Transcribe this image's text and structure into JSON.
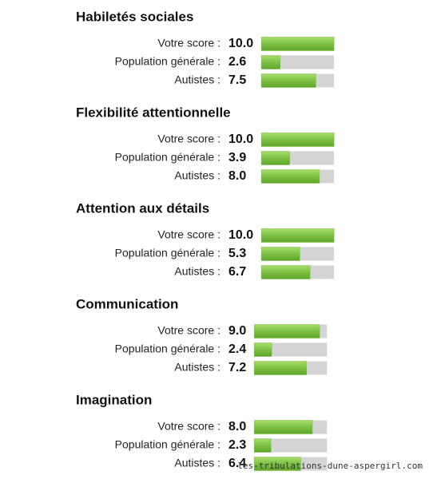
{
  "chart_data": [
    {
      "type": "bar",
      "title": "Habiletés sociales",
      "categories": [
        "Votre score :",
        "Population générale :",
        "Autistes :"
      ],
      "values": [
        10,
        2.6,
        7.5
      ],
      "value_labels": [
        "10.0",
        "2.6",
        "7.5"
      ],
      "xlim": [
        0,
        10
      ],
      "color": "#7cc142"
    },
    {
      "type": "bar",
      "title": "Flexibilité attentionnelle",
      "categories": [
        "Votre score :",
        "Population générale :",
        "Autistes :"
      ],
      "values": [
        10,
        3.9,
        8
      ],
      "value_labels": [
        "10.0",
        "3.9",
        "8.0"
      ],
      "xlim": [
        0,
        10
      ],
      "color": "#7cc142"
    },
    {
      "type": "bar",
      "title": "Attention aux détails",
      "categories": [
        "Votre score :",
        "Population générale :",
        "Autistes :"
      ],
      "values": [
        10,
        5.3,
        6.7
      ],
      "value_labels": [
        "10.0",
        "5.3",
        "6.7"
      ],
      "xlim": [
        0,
        10
      ],
      "color": "#7cc142"
    },
    {
      "type": "bar",
      "title": "Communication",
      "categories": [
        "Votre score :",
        "Population générale :",
        "Autistes :"
      ],
      "values": [
        9,
        2.4,
        7.2
      ],
      "value_labels": [
        "9.0",
        "2.4",
        "7.2"
      ],
      "xlim": [
        0,
        10
      ],
      "color": "#7cc142"
    },
    {
      "type": "bar",
      "title": "Imagination",
      "categories": [
        "Votre score :",
        "Population générale :",
        "Autistes :"
      ],
      "values": [
        8,
        2.3,
        6.4
      ],
      "value_labels": [
        "8.0",
        "2.3",
        "6.4"
      ],
      "xlim": [
        0,
        10
      ],
      "color": "#7cc142"
    }
  ],
  "watermark": "les-tribulations-dune-aspergirl.com"
}
